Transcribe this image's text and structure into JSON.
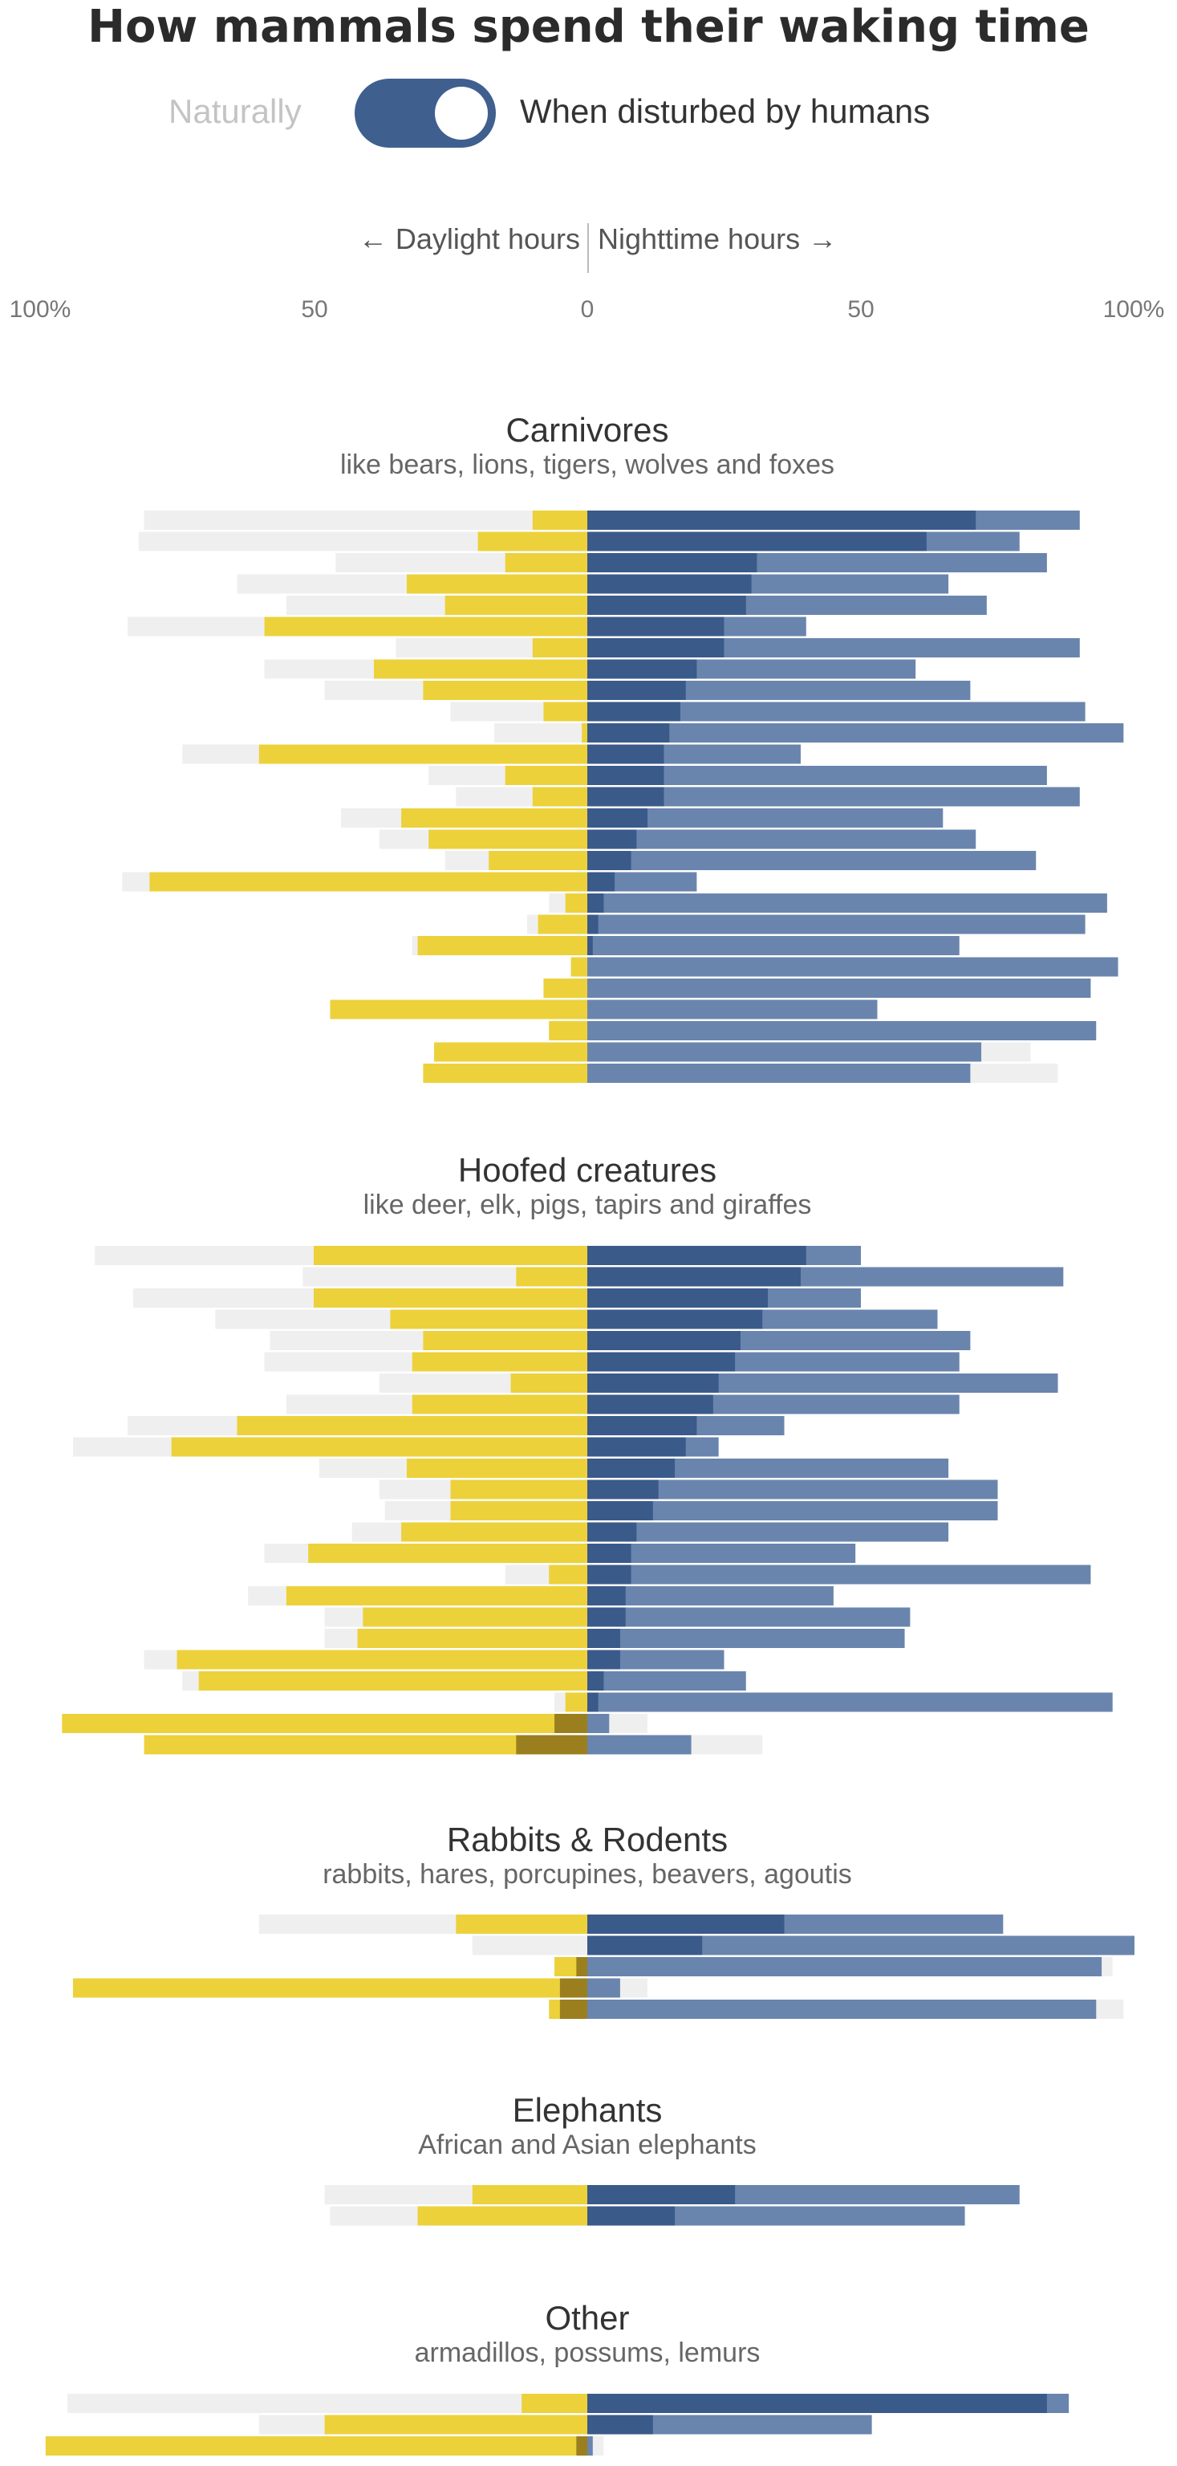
{
  "title": "How mammals spend their waking time",
  "toggle": {
    "left_label": "Naturally",
    "right_label": "When disturbed by humans",
    "selected": "When disturbed by humans"
  },
  "direction": {
    "left": "← Daylight hours",
    "right": "Nighttime hours →"
  },
  "colors": {
    "day": "#ecd13b",
    "night_natural": "#3a5a8a",
    "night_disturbed": "#6a85ad",
    "natural_ghost": "#efefef",
    "overlap": "#9b7f1e"
  },
  "chart_data": {
    "type": "bar",
    "orientation": "horizontal-diverging",
    "axis_ticks": [
      "100%",
      "50",
      "0",
      "50",
      "100%"
    ],
    "xlim": [
      -100,
      100
    ],
    "description_fields": "Each row is one species. day = % of waking time in daylight when disturbed; ghost = daylight % naturally; night_nat = nighttime % naturally; night_dist = nighttime % when disturbed; night_ghost = extra natural night extent; overlap = shared daylight portion.",
    "groups": [
      {
        "title": "Carnivores",
        "subtitle": "like bears, lions, tigers, wolves and foxes",
        "rows": [
          {
            "ghost": 81,
            "day": 10,
            "night_nat": 71,
            "night_dist": 90
          },
          {
            "ghost": 82,
            "day": 20,
            "night_nat": 62,
            "night_dist": 79
          },
          {
            "ghost": 46,
            "day": 15,
            "night_nat": 31,
            "night_dist": 84
          },
          {
            "ghost": 64,
            "day": 33,
            "night_nat": 30,
            "night_dist": 66
          },
          {
            "ghost": 55,
            "day": 26,
            "night_nat": 29,
            "night_dist": 73
          },
          {
            "ghost": 84,
            "day": 59,
            "night_nat": 25,
            "night_dist": 40
          },
          {
            "ghost": 35,
            "day": 10,
            "night_nat": 25,
            "night_dist": 90
          },
          {
            "ghost": 59,
            "day": 39,
            "night_nat": 20,
            "night_dist": 60
          },
          {
            "ghost": 48,
            "day": 30,
            "night_nat": 18,
            "night_dist": 70
          },
          {
            "ghost": 25,
            "day": 8,
            "night_nat": 17,
            "night_dist": 91
          },
          {
            "ghost": 17,
            "day": 1,
            "night_nat": 15,
            "night_dist": 98
          },
          {
            "ghost": 74,
            "day": 60,
            "night_nat": 14,
            "night_dist": 39
          },
          {
            "ghost": 29,
            "day": 15,
            "night_nat": 14,
            "night_dist": 84
          },
          {
            "ghost": 24,
            "day": 10,
            "night_nat": 14,
            "night_dist": 90
          },
          {
            "ghost": 45,
            "day": 34,
            "night_nat": 11,
            "night_dist": 65
          },
          {
            "ghost": 38,
            "day": 29,
            "night_nat": 9,
            "night_dist": 71
          },
          {
            "ghost": 26,
            "day": 18,
            "night_nat": 8,
            "night_dist": 82
          },
          {
            "ghost": 85,
            "day": 80,
            "night_nat": 5,
            "night_dist": 20
          },
          {
            "ghost": 7,
            "day": 4,
            "night_nat": 3,
            "night_dist": 95
          },
          {
            "ghost": 11,
            "day": 9,
            "night_nat": 2,
            "night_dist": 91
          },
          {
            "ghost": 32,
            "day": 31,
            "night_nat": 1,
            "night_dist": 68
          },
          {
            "ghost": 3,
            "day": 3,
            "night_nat": 0,
            "night_dist": 97
          },
          {
            "ghost": 8,
            "day": 8,
            "night_nat": 0,
            "night_dist": 92
          },
          {
            "ghost": 47,
            "day": 47,
            "night_nat": 0,
            "night_dist": 53
          },
          {
            "ghost": 7,
            "day": 7,
            "night_nat": 0,
            "night_dist": 93
          },
          {
            "ghost": 8,
            "day": 28,
            "night_nat": 0,
            "night_dist": 72,
            "night_ghost": 81
          },
          {
            "ghost": 16,
            "day": 30,
            "night_nat": 0,
            "night_dist": 70,
            "night_ghost": 86
          }
        ]
      },
      {
        "title": "Hoofed creatures",
        "subtitle": "like deer, elk, pigs, tapirs and giraffes",
        "rows": [
          {
            "ghost": 90,
            "day": 50,
            "night_nat": 40,
            "night_dist": 50
          },
          {
            "ghost": 52,
            "day": 13,
            "night_nat": 39,
            "night_dist": 87
          },
          {
            "ghost": 83,
            "day": 50,
            "night_nat": 33,
            "night_dist": 50
          },
          {
            "ghost": 68,
            "day": 36,
            "night_nat": 32,
            "night_dist": 64
          },
          {
            "ghost": 58,
            "day": 30,
            "night_nat": 28,
            "night_dist": 70
          },
          {
            "ghost": 59,
            "day": 32,
            "night_nat": 27,
            "night_dist": 68
          },
          {
            "ghost": 38,
            "day": 14,
            "night_nat": 24,
            "night_dist": 86
          },
          {
            "ghost": 55,
            "day": 32,
            "night_nat": 23,
            "night_dist": 68
          },
          {
            "ghost": 84,
            "day": 64,
            "night_nat": 20,
            "night_dist": 36
          },
          {
            "ghost": 94,
            "day": 76,
            "night_nat": 18,
            "night_dist": 24
          },
          {
            "ghost": 49,
            "day": 33,
            "night_nat": 16,
            "night_dist": 66
          },
          {
            "ghost": 38,
            "day": 25,
            "night_nat": 13,
            "night_dist": 75
          },
          {
            "ghost": 37,
            "day": 25,
            "night_nat": 12,
            "night_dist": 75
          },
          {
            "ghost": 43,
            "day": 34,
            "night_nat": 9,
            "night_dist": 66
          },
          {
            "ghost": 59,
            "day": 51,
            "night_nat": 8,
            "night_dist": 49
          },
          {
            "ghost": 15,
            "day": 7,
            "night_nat": 8,
            "night_dist": 92
          },
          {
            "ghost": 62,
            "day": 55,
            "night_nat": 7,
            "night_dist": 45
          },
          {
            "ghost": 48,
            "day": 41,
            "night_nat": 7,
            "night_dist": 59
          },
          {
            "ghost": 48,
            "day": 42,
            "night_nat": 6,
            "night_dist": 58
          },
          {
            "ghost": 81,
            "day": 75,
            "night_nat": 6,
            "night_dist": 25
          },
          {
            "ghost": 74,
            "day": 71,
            "night_nat": 3,
            "night_dist": 29
          },
          {
            "ghost": 6,
            "day": 4,
            "night_nat": 2,
            "night_dist": 96
          },
          {
            "ghost": 6,
            "day": 96,
            "night_nat": 0,
            "night_dist": 4,
            "night_ghost": 11,
            "overlap": 6
          },
          {
            "ghost": 13,
            "day": 81,
            "night_nat": 0,
            "night_dist": 19,
            "night_ghost": 32,
            "overlap": 13
          }
        ]
      },
      {
        "title": "Rabbits & Rodents",
        "subtitle": "rabbits, hares, porcupines, beavers, agoutis",
        "rows": [
          {
            "ghost": 60,
            "day": 24,
            "night_nat": 36,
            "night_dist": 76
          },
          {
            "ghost": 21,
            "day": 0,
            "night_nat": 21,
            "night_dist": 100
          },
          {
            "ghost": 2,
            "day": 6,
            "night_nat": 0,
            "night_dist": 94,
            "night_ghost": 96,
            "overlap": 2
          },
          {
            "ghost": 5,
            "day": 94,
            "night_nat": 0,
            "night_dist": 6,
            "night_ghost": 11,
            "overlap": 5
          },
          {
            "ghost": 5,
            "day": 7,
            "night_nat": 0,
            "night_dist": 93,
            "night_ghost": 98,
            "overlap": 5
          }
        ]
      },
      {
        "title": "Elephants",
        "subtitle": "African and Asian elephants",
        "rows": [
          {
            "ghost": 48,
            "day": 21,
            "night_nat": 27,
            "night_dist": 79
          },
          {
            "ghost": 47,
            "day": 31,
            "night_nat": 16,
            "night_dist": 69
          }
        ]
      },
      {
        "title": "Other",
        "subtitle": "armadillos, possums, lemurs",
        "rows": [
          {
            "ghost": 95,
            "day": 12,
            "night_nat": 84,
            "night_dist": 88
          },
          {
            "ghost": 60,
            "day": 48,
            "night_nat": 12,
            "night_dist": 52
          },
          {
            "ghost": 2,
            "day": 99,
            "night_nat": 0,
            "night_dist": 1,
            "night_ghost": 3,
            "overlap": 2
          }
        ]
      }
    ]
  }
}
